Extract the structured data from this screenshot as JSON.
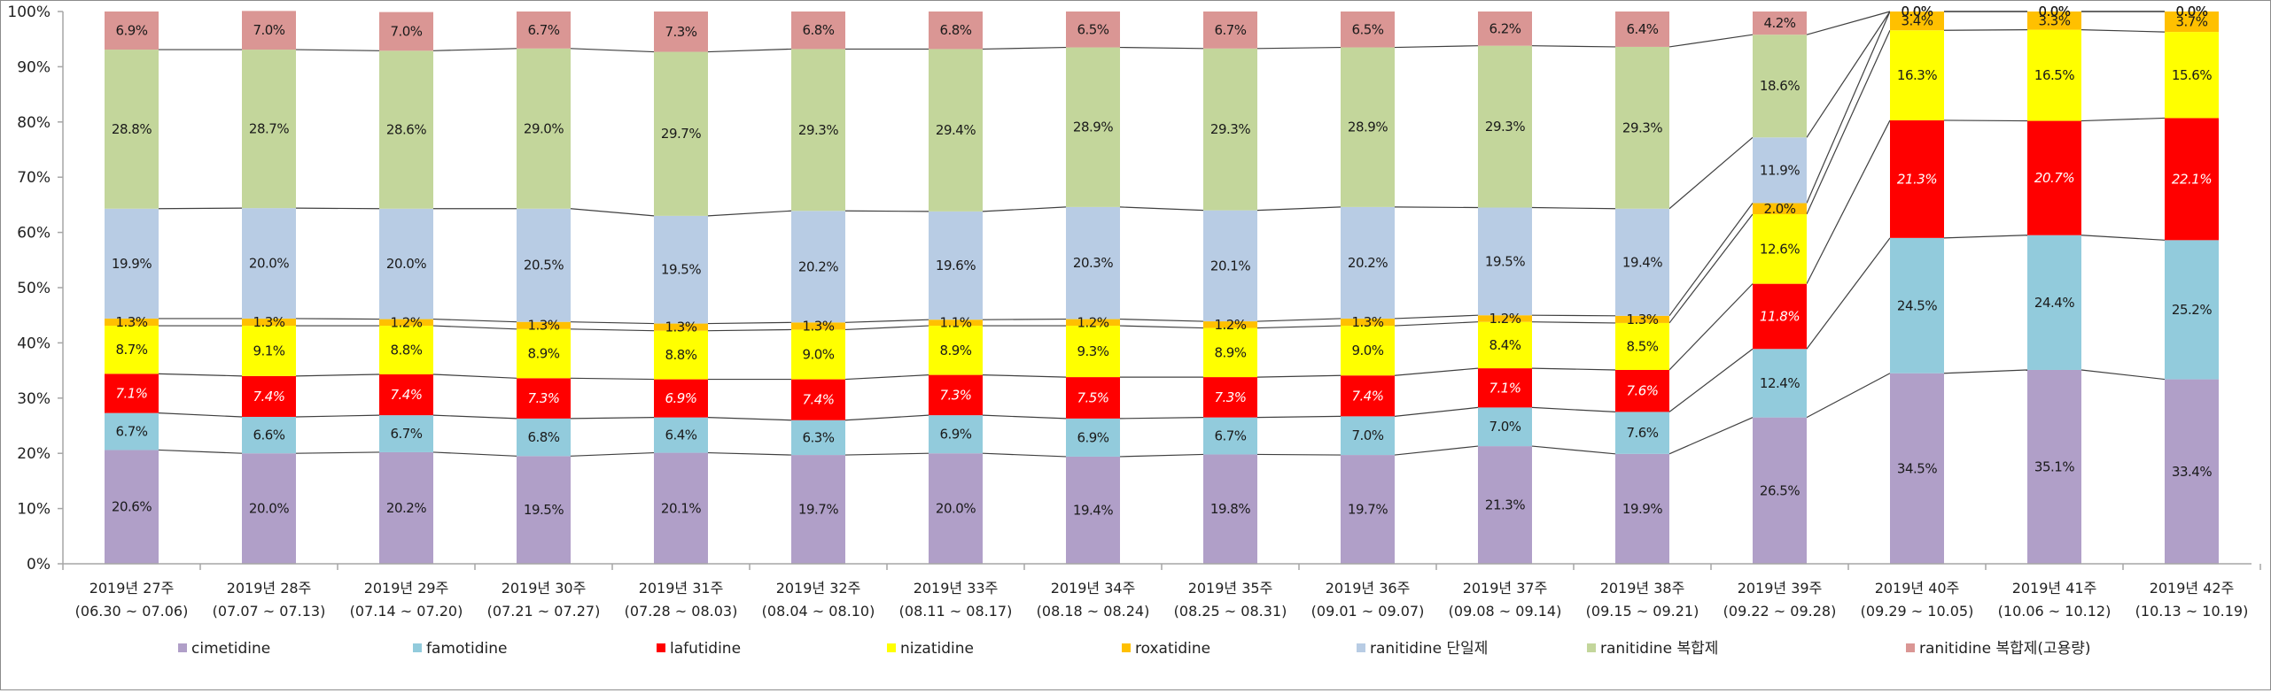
{
  "chart_data": {
    "type": "bar",
    "stacked": "percent",
    "title": "",
    "xlabel": "",
    "ylabel": "",
    "ylim": [
      0,
      100
    ],
    "y_ticks": [
      "0%",
      "10%",
      "20%",
      "30%",
      "40%",
      "50%",
      "60%",
      "70%",
      "80%",
      "90%",
      "100%"
    ],
    "legend_position": "bottom",
    "series_lines": true,
    "categories": [
      {
        "week": "2019년 27주",
        "range": "(06.30 ~ 07.06)"
      },
      {
        "week": "2019년 28주",
        "range": "(07.07 ~ 07.13)"
      },
      {
        "week": "2019년 29주",
        "range": "(07.14 ~ 07.20)"
      },
      {
        "week": "2019년 30주",
        "range": "(07.21 ~ 07.27)"
      },
      {
        "week": "2019년 31주",
        "range": "(07.28 ~ 08.03)"
      },
      {
        "week": "2019년 32주",
        "range": "(08.04 ~ 08.10)"
      },
      {
        "week": "2019년 33주",
        "range": "(08.11 ~ 08.17)"
      },
      {
        "week": "2019년 34주",
        "range": "(08.18 ~ 08.24)"
      },
      {
        "week": "2019년 35주",
        "range": "(08.25 ~ 08.31)"
      },
      {
        "week": "2019년 36주",
        "range": "(09.01 ~ 09.07)"
      },
      {
        "week": "2019년 37주",
        "range": "(09.08 ~ 09.14)"
      },
      {
        "week": "2019년 38주",
        "range": "(09.15 ~ 09.21)"
      },
      {
        "week": "2019년 39주",
        "range": "(09.22 ~ 09.28)"
      },
      {
        "week": "2019년 40주",
        "range": "(09.29 ~ 10.05)"
      },
      {
        "week": "2019년 41주",
        "range": "(10.06 ~ 10.12)"
      },
      {
        "week": "2019년 42주",
        "range": "(10.13 ~ 10.19)"
      }
    ],
    "series": [
      {
        "name": "cimetidine",
        "color": "#b09fc8",
        "label_style": "dark",
        "values": [
          20.6,
          20.0,
          20.2,
          19.5,
          20.1,
          19.7,
          20.0,
          19.4,
          19.8,
          19.7,
          21.3,
          19.9,
          26.5,
          34.5,
          35.1,
          33.4
        ]
      },
      {
        "name": "famotidine",
        "color": "#92cbdc",
        "label_style": "dark",
        "values": [
          6.7,
          6.6,
          6.7,
          6.8,
          6.4,
          6.3,
          6.9,
          6.9,
          6.7,
          7.0,
          7.0,
          7.6,
          12.4,
          24.5,
          24.4,
          25.2
        ]
      },
      {
        "name": "lafutidine",
        "color": "#ff0000",
        "label_style": "white-italic",
        "values": [
          7.1,
          7.4,
          7.4,
          7.3,
          6.9,
          7.4,
          7.3,
          7.5,
          7.3,
          7.4,
          7.1,
          7.6,
          11.8,
          21.3,
          20.7,
          22.1
        ]
      },
      {
        "name": "nizatidine",
        "color": "#ffff00",
        "label_style": "dark",
        "values": [
          8.7,
          9.1,
          8.8,
          8.9,
          8.8,
          9.0,
          8.9,
          9.3,
          8.9,
          9.0,
          8.4,
          8.5,
          12.6,
          16.3,
          16.5,
          15.6
        ]
      },
      {
        "name": "roxatidine",
        "color": "#ffc000",
        "label_style": "dark",
        "values": [
          1.3,
          1.3,
          1.2,
          1.3,
          1.3,
          1.3,
          1.1,
          1.2,
          1.2,
          1.3,
          1.2,
          1.3,
          2.0,
          3.4,
          3.3,
          3.7
        ]
      },
      {
        "name": "ranitidine 단일제",
        "color": "#b8cce4",
        "label_style": "dark",
        "values": [
          19.9,
          20.0,
          20.0,
          20.5,
          19.5,
          20.2,
          19.6,
          20.3,
          20.1,
          20.2,
          19.5,
          19.4,
          11.9,
          0.0,
          0.0,
          0.0
        ]
      },
      {
        "name": "ranitidine 복합제",
        "color": "#c3d69b",
        "label_style": "dark",
        "values": [
          28.8,
          28.7,
          28.6,
          29.0,
          29.7,
          29.3,
          29.4,
          28.9,
          29.3,
          28.9,
          29.3,
          29.3,
          18.6,
          0.0,
          0.0,
          0.0
        ]
      },
      {
        "name": "ranitidine 복합제(고용량)",
        "color": "#da9694",
        "label_style": "dark",
        "values": [
          6.9,
          7.0,
          7.0,
          6.7,
          7.3,
          6.8,
          6.8,
          6.5,
          6.7,
          6.5,
          6.2,
          6.4,
          4.2,
          0.0,
          0.0,
          0.0
        ]
      }
    ]
  }
}
